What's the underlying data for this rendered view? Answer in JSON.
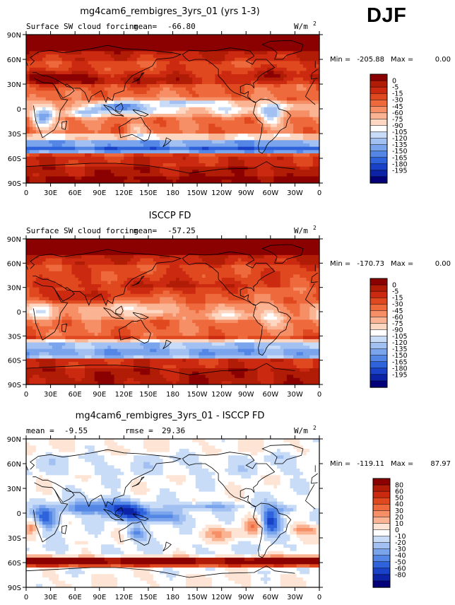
{
  "season": "DJF",
  "chart_data": [
    {
      "type": "heatmap",
      "title": "mg4cam6_rembigres_3yrs_01 (yrs 1-3)",
      "subtitle": "Surface SW cloud forcing",
      "mean_label": "mean=",
      "mean": "-66.80",
      "units": "W/m",
      "units_sup": "2",
      "min_label": "Min =",
      "min": "-205.88",
      "max_label": "Max =",
      "max": "0.00",
      "lat_ticks": [
        "90N",
        "60N",
        "30N",
        "0",
        "30S",
        "60S",
        "90S"
      ],
      "lon_ticks": [
        "0",
        "30E",
        "60E",
        "90E",
        "120E",
        "150E",
        "180",
        "150W",
        "120W",
        "90W",
        "60W",
        "30W",
        "0"
      ],
      "xlim": [
        0,
        360
      ],
      "ylim": [
        -90,
        90
      ],
      "levels": [
        "0",
        "-5",
        "-15",
        "-30",
        "-45",
        "-60",
        "-75",
        "-90",
        "-105",
        "-120",
        "-135",
        "-150",
        "-165",
        "-180",
        "-195"
      ],
      "colors": [
        "#8b0000",
        "#b01c06",
        "#cc2a10",
        "#e0481f",
        "#ee6a3d",
        "#f68e66",
        "#fbb493",
        "#fed7c2",
        "#ffffff",
        "#c8dcf7",
        "#a2c1f2",
        "#7aa4ec",
        "#5486e6",
        "#2e63dc",
        "#1942c8",
        "#0c23a8",
        "#03007a"
      ],
      "field": "model"
    },
    {
      "type": "heatmap",
      "title": "ISCCP FD",
      "subtitle": "Surface SW cloud forcing",
      "mean_label": "mean=",
      "mean": "-57.25",
      "units": "W/m",
      "units_sup": "2",
      "min_label": "Min =",
      "min": "-170.73",
      "max_label": "Max =",
      "max": "0.00",
      "lat_ticks": [
        "90N",
        "60N",
        "30N",
        "0",
        "30S",
        "60S",
        "90S"
      ],
      "lon_ticks": [
        "0",
        "30E",
        "60E",
        "90E",
        "120E",
        "150E",
        "180",
        "150W",
        "120W",
        "90W",
        "60W",
        "30W",
        "0"
      ],
      "xlim": [
        0,
        360
      ],
      "ylim": [
        -90,
        90
      ],
      "levels": [
        "0",
        "-5",
        "-15",
        "-30",
        "-45",
        "-60",
        "-75",
        "-90",
        "-105",
        "-120",
        "-135",
        "-150",
        "-165",
        "-180",
        "-195"
      ],
      "colors": [
        "#8b0000",
        "#b01c06",
        "#cc2a10",
        "#e0481f",
        "#ee6a3d",
        "#f68e66",
        "#fbb493",
        "#fed7c2",
        "#ffffff",
        "#c8dcf7",
        "#a2c1f2",
        "#7aa4ec",
        "#5486e6",
        "#2e63dc",
        "#1942c8",
        "#0c23a8",
        "#03007a"
      ],
      "field": "obs"
    },
    {
      "type": "heatmap",
      "title": "mg4cam6_rembigres_3yrs_01 - ISCCP FD",
      "subtitle": "",
      "mean_label": "mean =",
      "mean": "-9.55",
      "rmse_label": "rmse =",
      "rmse": "29.36",
      "units": "W/m",
      "units_sup": "2",
      "min_label": "Min =",
      "min": "-119.11",
      "max_label": "Max =",
      "max": "87.97",
      "lat_ticks": [
        "90N",
        "60N",
        "30N",
        "0",
        "30S",
        "60S",
        "90S"
      ],
      "lon_ticks": [
        "0",
        "30E",
        "60E",
        "90E",
        "120E",
        "150E",
        "180",
        "150W",
        "120W",
        "90W",
        "60W",
        "30W",
        "0"
      ],
      "xlim": [
        0,
        360
      ],
      "ylim": [
        -90,
        90
      ],
      "levels": [
        "80",
        "60",
        "50",
        "40",
        "30",
        "20",
        "10",
        "0",
        "-10",
        "-20",
        "-30",
        "-40",
        "-50",
        "-60",
        "-80"
      ],
      "colors": [
        "#8b0000",
        "#b01c06",
        "#cc2a10",
        "#e0481f",
        "#ee6a3d",
        "#f68e66",
        "#fbb493",
        "#fde4d4",
        "#ffffff",
        "#c8dcf7",
        "#a2c1f2",
        "#7aa4ec",
        "#5486e6",
        "#2e63dc",
        "#1942c8",
        "#0c23a8",
        "#03007a"
      ],
      "field": "diff"
    }
  ]
}
